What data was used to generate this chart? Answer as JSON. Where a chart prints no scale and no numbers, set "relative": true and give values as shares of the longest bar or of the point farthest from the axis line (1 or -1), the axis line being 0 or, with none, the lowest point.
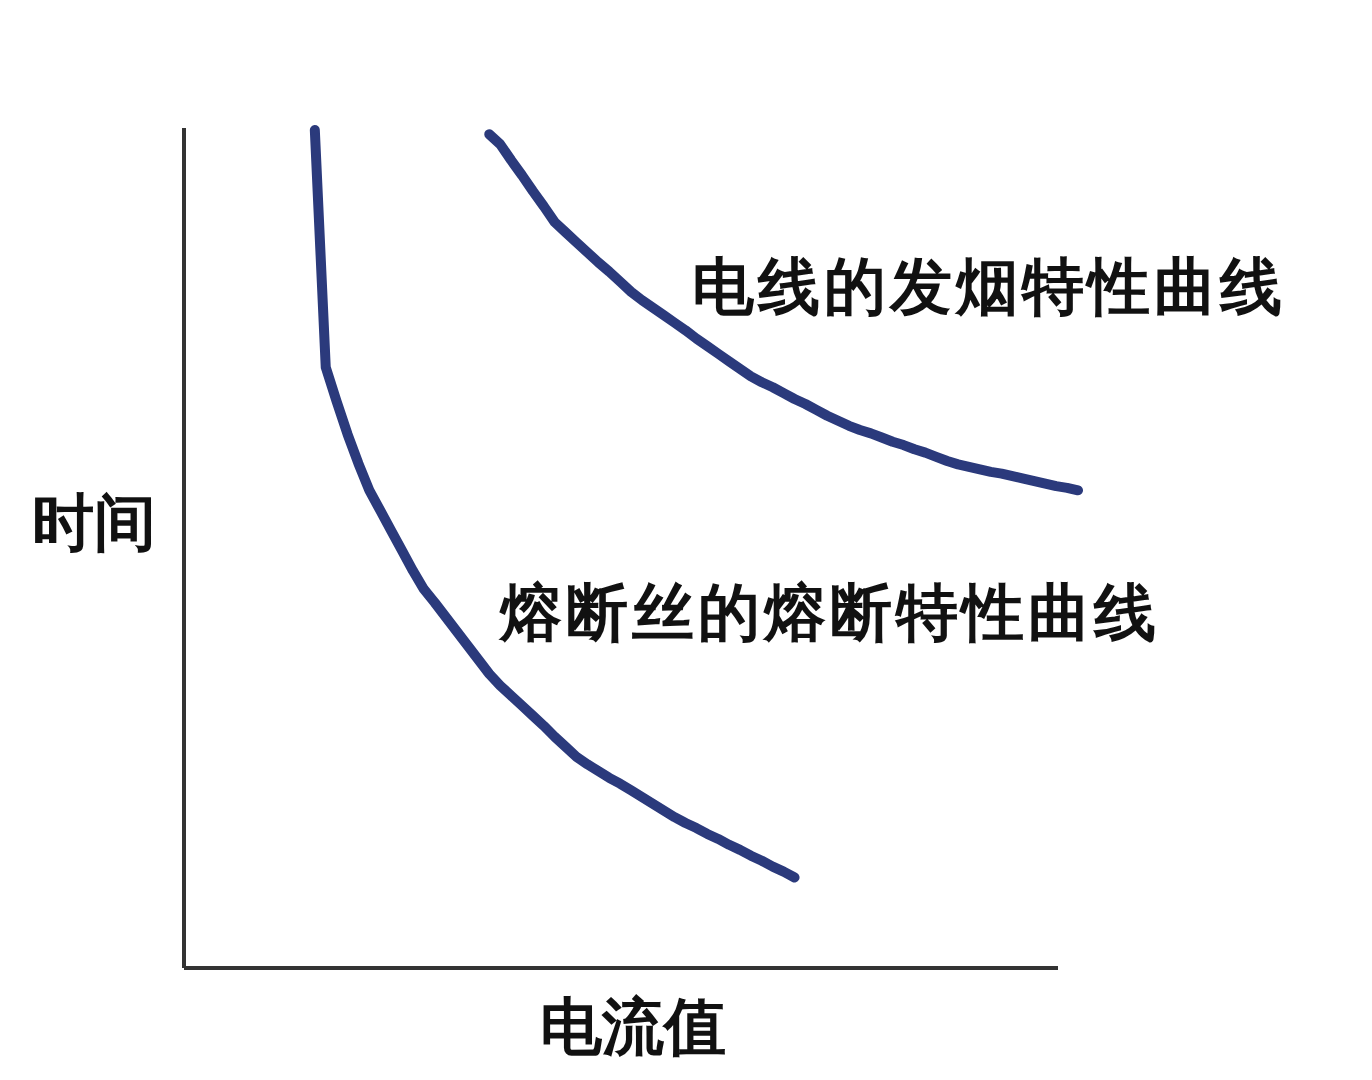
{
  "chart_data": {
    "type": "line",
    "xlabel": "电流值",
    "ylabel": "时间",
    "relative": true,
    "categories": [
      null,
      null,
      null,
      null,
      null,
      null,
      null,
      null,
      null,
      null,
      null,
      null,
      null,
      null,
      null,
      null,
      null,
      null,
      null,
      null,
      null,
      null,
      null,
      null,
      null,
      null,
      null,
      null,
      null,
      null,
      null,
      null,
      null,
      null,
      null,
      null,
      null,
      null,
      null,
      null,
      null,
      null,
      null,
      null,
      null,
      null,
      null,
      null,
      null,
      null,
      null,
      null,
      null,
      null,
      null,
      null,
      null,
      null,
      null,
      null,
      null,
      null,
      null,
      null,
      null,
      null,
      null,
      null,
      null,
      null,
      null,
      null,
      null,
      null,
      null,
      null,
      null,
      null,
      null,
      null,
      null,
      null
    ],
    "series": [
      {
        "name": "熔断丝的熔断特性曲线",
        "color": "#2b3a7c",
        "values": [
          null,
          null,
          null,
          null,
          null,
          null,
          null,
          null,
          null,
          null,
          null,
          1.0,
          0.717,
          0.676,
          0.637,
          0.602,
          0.57,
          0.546,
          0.522,
          0.498,
          0.474,
          0.452,
          0.436,
          0.419,
          0.402,
          0.385,
          0.368,
          0.351,
          0.337,
          0.325,
          0.313,
          0.301,
          0.289,
          0.276,
          0.264,
          0.252,
          0.243,
          0.235,
          0.227,
          0.22,
          0.212,
          0.204,
          0.196,
          0.188,
          0.18,
          0.173,
          0.167,
          0.16,
          0.154,
          0.147,
          0.141,
          0.134,
          0.128,
          0.121,
          0.115,
          0.108,
          null,
          null,
          null,
          null,
          null,
          null,
          null,
          null,
          null,
          null,
          null,
          null,
          null,
          null,
          null,
          null,
          null,
          null,
          null,
          null,
          null,
          null,
          null,
          null,
          null,
          null
        ]
      },
      {
        "name": "电线的发烟特性曲线",
        "color": "#2b3a7c",
        "values": [
          null,
          null,
          null,
          null,
          null,
          null,
          null,
          null,
          null,
          null,
          null,
          null,
          null,
          null,
          null,
          null,
          null,
          null,
          null,
          null,
          null,
          null,
          null,
          null,
          null,
          null,
          null,
          0.995,
          0.983,
          0.964,
          0.946,
          0.927,
          0.909,
          0.89,
          0.878,
          0.866,
          0.854,
          0.842,
          0.831,
          0.819,
          0.807,
          0.797,
          0.788,
          0.779,
          0.77,
          0.761,
          0.751,
          0.742,
          0.733,
          0.724,
          0.715,
          0.706,
          0.699,
          0.693,
          0.686,
          0.679,
          0.673,
          0.666,
          0.659,
          0.653,
          0.647,
          0.642,
          0.638,
          0.633,
          0.628,
          0.624,
          0.619,
          0.615,
          0.61,
          0.605,
          0.601,
          0.598,
          0.595,
          0.592,
          0.59,
          0.587,
          0.584,
          0.581,
          0.578,
          0.575,
          0.573,
          0.57
        ]
      }
    ]
  }
}
